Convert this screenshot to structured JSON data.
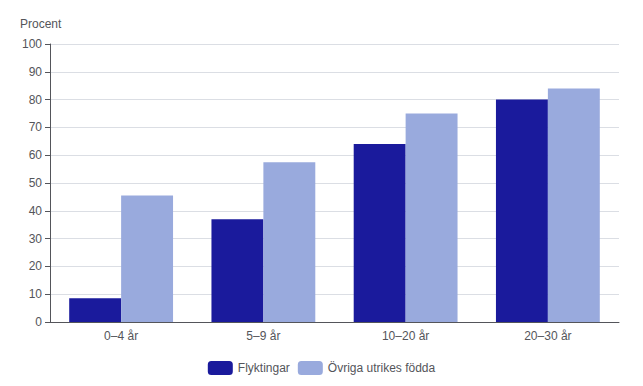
{
  "chart_data": {
    "type": "bar",
    "y_label": "Procent",
    "categories": [
      "0–4 år",
      "5–9 år",
      "10–20 år",
      "20–30 år"
    ],
    "series": [
      {
        "name": "Flyktingar",
        "color": "#1a1a9c",
        "values": [
          8.5,
          37,
          64,
          80
        ]
      },
      {
        "name": "Övriga utrikes födda",
        "color": "#99aadd",
        "values": [
          45.5,
          57.5,
          75,
          84
        ]
      }
    ],
    "ylim": [
      0,
      100
    ],
    "yticks": [
      0,
      10,
      20,
      30,
      40,
      50,
      60,
      70,
      80,
      90,
      100
    ],
    "grid": true,
    "legend": "bottom"
  }
}
